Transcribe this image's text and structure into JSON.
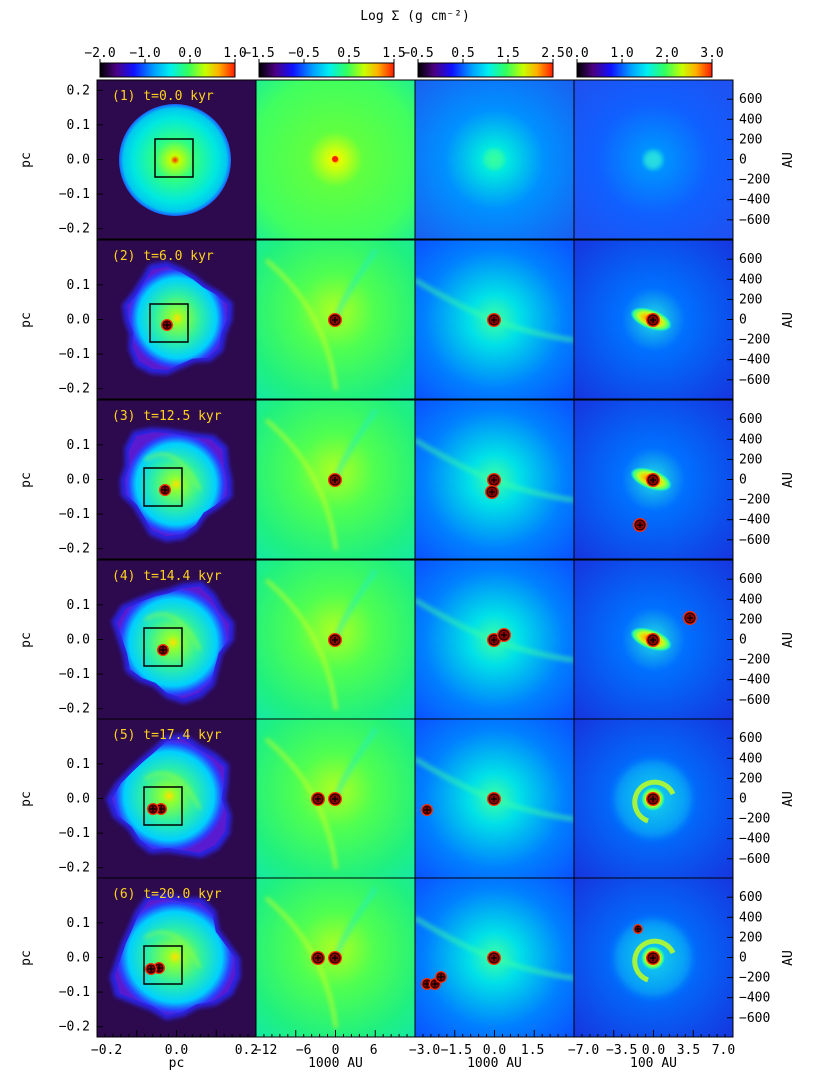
{
  "colorbar_title": "Log Σ (g cm⁻²)",
  "colorbars": [
    {
      "ticks": [
        "−2.0",
        "−1.0",
        "0.0",
        "1.0"
      ]
    },
    {
      "ticks": [
        "−1.5",
        "−0.5",
        "0.5",
        "1.5"
      ]
    },
    {
      "ticks": [
        "−0.5",
        "0.5",
        "1.5",
        "2.5"
      ]
    },
    {
      "ticks": [
        "0.0",
        "1.0",
        "2.0",
        "3.0"
      ]
    }
  ],
  "rows": [
    {
      "label": "(1) t=0.0 kyr"
    },
    {
      "label": "(2) t=6.0 kyr"
    },
    {
      "label": "(3) t=12.5 kyr"
    },
    {
      "label": "(4) t=14.4 kyr"
    },
    {
      "label": "(5) t=17.4 kyr"
    },
    {
      "label": "(6) t=20.0 kyr"
    }
  ],
  "left_axis": {
    "label": "pc",
    "ticks": [
      "0.2",
      "0.1",
      "0.0",
      "−0.1",
      "−0.2"
    ]
  },
  "right_axis": {
    "label": "AU",
    "ticks": [
      "600",
      "400",
      "200",
      "0",
      "−200",
      "−400",
      "−600"
    ]
  },
  "bottom_axes": [
    {
      "ticks": [
        "−0.2",
        "0.0",
        "0.2"
      ],
      "label": "pc"
    },
    {
      "ticks": [
        "−12",
        "−6",
        "0",
        "6"
      ],
      "label": "1000 AU"
    },
    {
      "ticks": [
        "−3.0",
        "−1.5",
        "0.0",
        "1.5"
      ],
      "label": "1000 AU"
    },
    {
      "ticks": [
        "−7.0",
        "−3.5",
        "0.0",
        "3.5",
        "7.0"
      ],
      "label": "100 AU"
    }
  ],
  "colors": {
    "background_outer": "#2d0a4e",
    "low": "#1a1aff",
    "mid": "#00e6e6",
    "high": "#33ff66",
    "peak": "#ff3300",
    "sink": "#8b0000",
    "time_label": "#ffd21a"
  }
}
